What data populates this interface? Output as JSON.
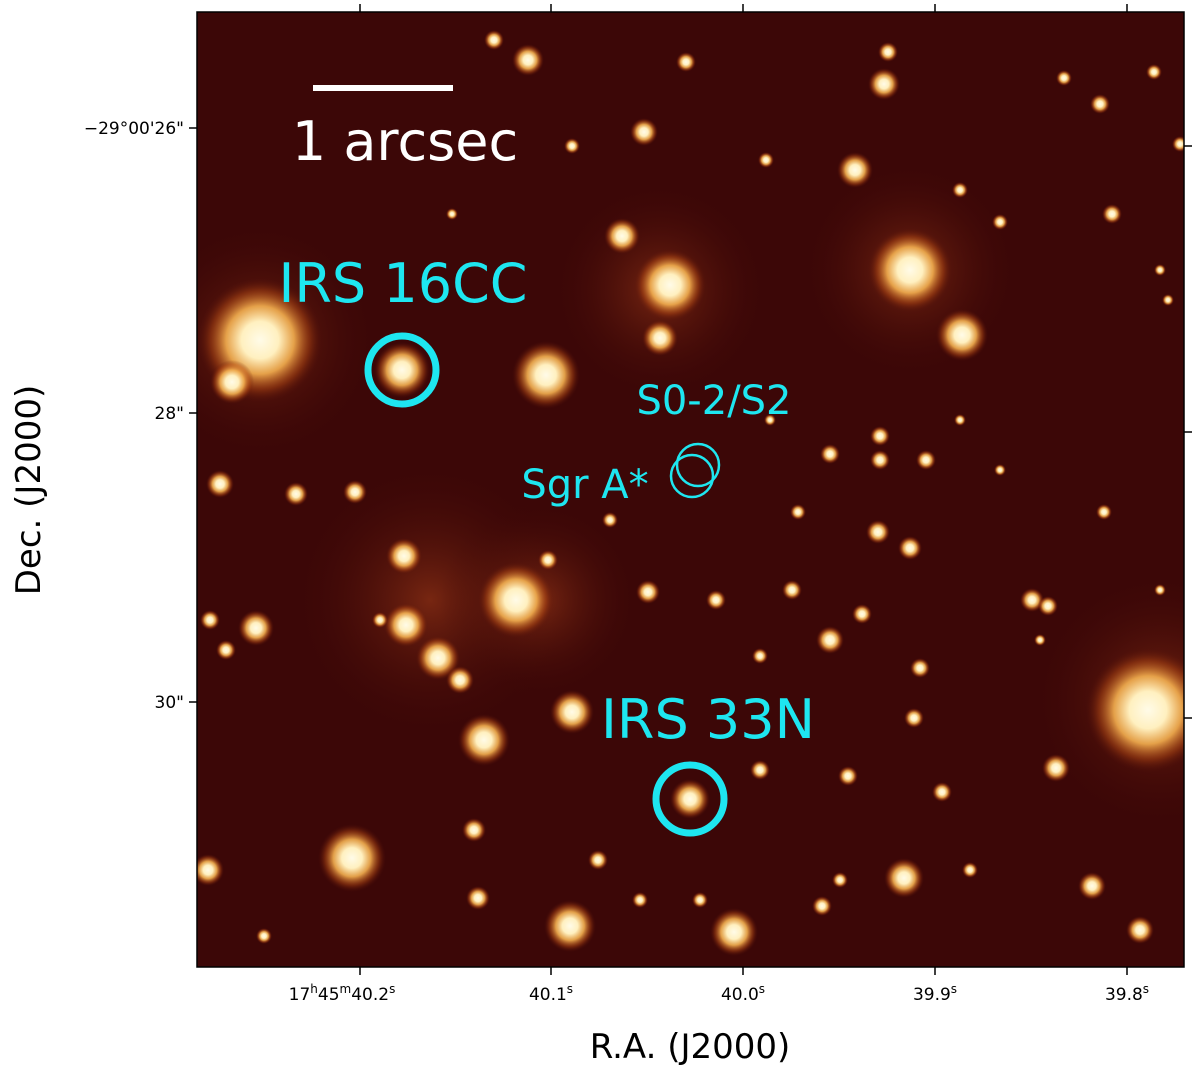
{
  "figure": {
    "xlabel": "R.A. (J2000)",
    "ylabel": "Dec. (J2000)",
    "x_ticks": [
      {
        "h": "17",
        "m": "45",
        "s": "40.2"
      },
      {
        "h": "",
        "m": "",
        "s": "40.1"
      },
      {
        "h": "",
        "m": "",
        "s": "40.0"
      },
      {
        "h": "",
        "m": "",
        "s": "39.9"
      },
      {
        "h": "",
        "m": "",
        "s": "39.8"
      }
    ],
    "y_ticks": [
      "−29°00'26\"",
      "28\"",
      "30\""
    ],
    "scale_bar_label": "1 arcsec",
    "labels": {
      "irs16cc": "IRS 16CC",
      "s02": "S0-2/S2",
      "sgra": "Sgr A*",
      "irs33n": "IRS 33N"
    },
    "colors": {
      "annotation": "#1ee6f0",
      "background": "#3a0606",
      "star_core": "#fff6d8",
      "star_halo": "#e08a2a",
      "scale_bar": "#ffffff"
    }
  }
}
